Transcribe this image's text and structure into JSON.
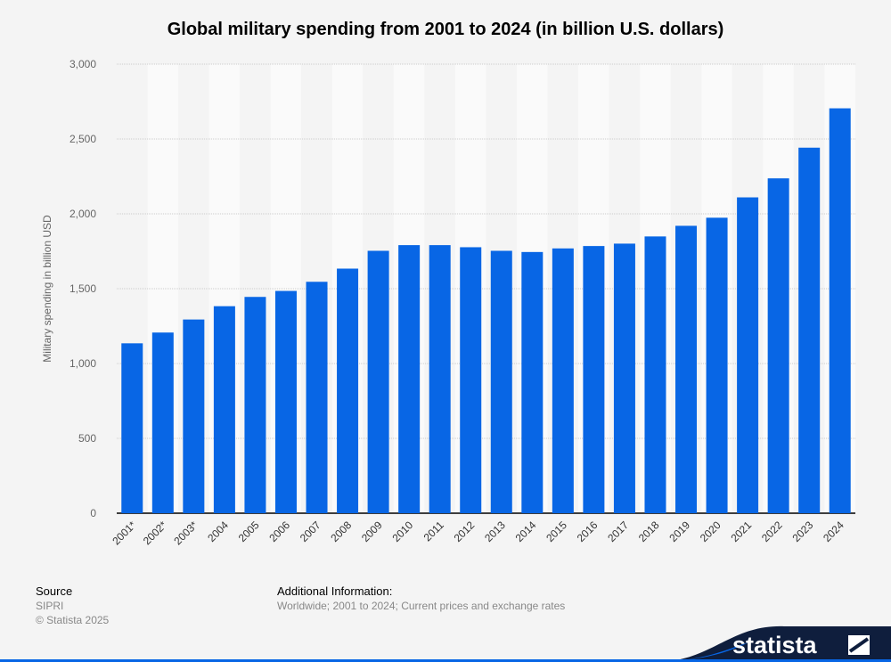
{
  "chart_data": {
    "type": "bar",
    "title": "Global military spending from 2001 to 2024 (in billion U.S. dollars)",
    "xlabel": "",
    "ylabel": "Military spending in billion USD",
    "ylim": [
      0,
      3000
    ],
    "yticks": [
      "0",
      "500",
      "1,000",
      "1,500",
      "2,000",
      "2,500",
      "3,000"
    ],
    "grid": true,
    "color": "#0866e5",
    "categories": [
      "2001*",
      "2002*",
      "2003*",
      "2004",
      "2005",
      "2006",
      "2007",
      "2008",
      "2009",
      "2010",
      "2011",
      "2012",
      "2013",
      "2014",
      "2015",
      "2016",
      "2017",
      "2018",
      "2019",
      "2020",
      "2021",
      "2022",
      "2023",
      "2024"
    ],
    "values": [
      1135,
      1207,
      1294,
      1383,
      1445,
      1485,
      1546,
      1634,
      1753,
      1791,
      1791,
      1777,
      1753,
      1745,
      1769,
      1785,
      1801,
      1849,
      1920,
      1974,
      2110,
      2237,
      2442,
      2705
    ]
  },
  "footer": {
    "source_label": "Source",
    "source": "SIPRI",
    "copyright": "© Statista 2025",
    "info_label": "Additional Information:",
    "info": "Worldwide; 2001 to 2024; Current prices and exchange rates"
  },
  "logo": "statista"
}
